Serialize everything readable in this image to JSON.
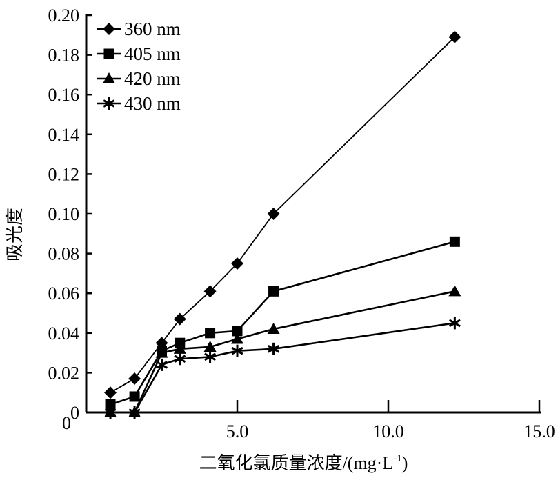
{
  "chart_data": {
    "type": "line",
    "title": "",
    "xlabel": "二氧化氯质量浓度/(mg·L",
    "xlabel_sup": "-1",
    "xlabel_close": ")",
    "ylabel": "吸光度",
    "xlim": [
      0,
      15
    ],
    "ylim": [
      0,
      0.2
    ],
    "xticks": [
      5,
      10,
      15
    ],
    "xtick_labels": [
      "5.0",
      "10.0",
      "15.0"
    ],
    "yticks": [
      0,
      0.02,
      0.04,
      0.06,
      0.08,
      0.1,
      0.12,
      0.14,
      0.16,
      0.18,
      0.2
    ],
    "ytick_labels": [
      "0",
      "0.02",
      "0.04",
      "0.06",
      "0.08",
      "0.10",
      "0.12",
      "0.14",
      "0.16",
      "0.18",
      "0.20"
    ],
    "grid": false,
    "legend_position": "top-left",
    "x": [
      0.8,
      1.6,
      2.5,
      3.1,
      4.1,
      5.0,
      6.2,
      12.2
    ],
    "series": [
      {
        "name": "360 nm",
        "marker": "diamond",
        "values": [
          0.01,
          0.017,
          0.035,
          0.047,
          0.061,
          0.075,
          0.1,
          0.189
        ]
      },
      {
        "name": "405 nm",
        "marker": "square",
        "values": [
          0.004,
          0.008,
          0.031,
          0.035,
          0.04,
          0.041,
          0.061,
          0.086
        ]
      },
      {
        "name": "420 nm",
        "marker": "triangle",
        "values": [
          0.0,
          0.0,
          0.03,
          0.032,
          0.033,
          0.037,
          0.042,
          0.061
        ]
      },
      {
        "name": "430 nm",
        "marker": "asterisk",
        "values": [
          0.0,
          0.0,
          0.024,
          0.027,
          0.028,
          0.031,
          0.032,
          0.045
        ]
      }
    ]
  }
}
